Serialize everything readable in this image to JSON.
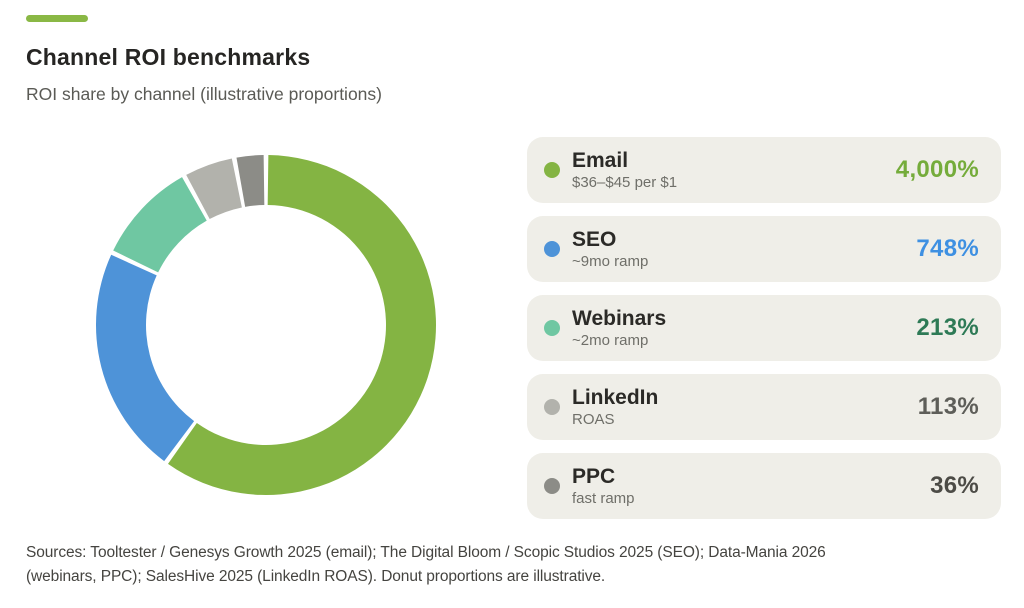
{
  "accent_color": "#8ab845",
  "header": {
    "title": "Channel ROI benchmarks",
    "subtitle": "ROI share by channel (illustrative proportions)"
  },
  "chart_data": {
    "type": "pie",
    "donut": true,
    "title": "Channel ROI benchmarks",
    "subtitle": "ROI share by channel (illustrative proportions)",
    "legend_position": "right",
    "start_angle_deg": 0,
    "gap_deg": 1.6,
    "note": "Donut proportions are illustrative",
    "channels": [
      {
        "label": "Email",
        "sublabel": "$36–$45 per $1",
        "value": "4,000%",
        "value_pct": 4000,
        "proportion": 60,
        "color": "#84b443",
        "value_color": "#75ac3b"
      },
      {
        "label": "SEO",
        "sublabel": "~9mo ramp",
        "value": "748%",
        "value_pct": 748,
        "proportion": 22,
        "color": "#4e93d8",
        "value_color": "#3e90e2"
      },
      {
        "label": "Webinars",
        "sublabel": "~2mo ramp",
        "value": "213%",
        "value_pct": 213,
        "proportion": 10,
        "color": "#6fc7a2",
        "value_color": "#2e7a56"
      },
      {
        "label": "LinkedIn",
        "sublabel": "ROAS",
        "value": "113%",
        "value_pct": 113,
        "proportion": 5,
        "color": "#b2b2ac",
        "value_color": "#5e5e59"
      },
      {
        "label": "PPC",
        "sublabel": "fast ramp",
        "value": "36%",
        "value_pct": 36,
        "proportion": 3,
        "color": "#8c8c87",
        "value_color": "#4c4b46"
      }
    ]
  },
  "footer": {
    "sources_line1": "Sources: Tooltester / Genesys Growth 2025 (email); The Digital Bloom / Scopic Studios 2025 (SEO); Data-Mania 2026",
    "sources_line2": "(webinars, PPC); SalesHive 2025 (LinkedIn ROAS). Donut proportions are illustrative."
  }
}
